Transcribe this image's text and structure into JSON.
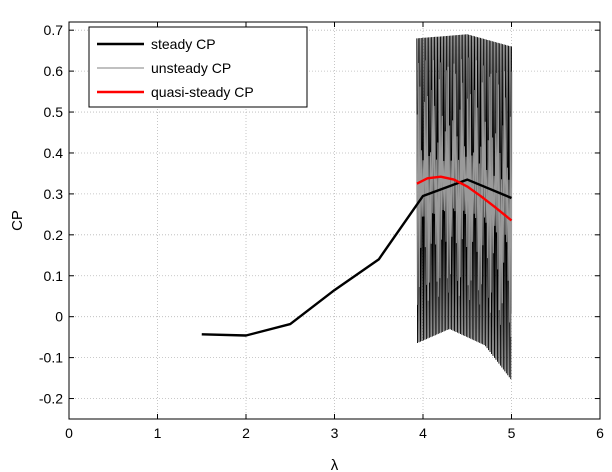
{
  "chart_data": {
    "type": "line",
    "xlabel": "λ",
    "ylabel": "CP",
    "xlim": [
      0,
      6
    ],
    "ylim": [
      -0.25,
      0.72
    ],
    "xticks": [
      0,
      1,
      2,
      3,
      4,
      5,
      6
    ],
    "xtick_labels": [
      "0",
      "1",
      "2",
      "3",
      "4",
      "5",
      "6"
    ],
    "yticks": [
      -0.2,
      -0.1,
      0,
      0.1,
      0.2,
      0.3,
      0.4,
      0.5,
      0.6,
      0.7
    ],
    "ytick_labels": [
      "-0.2",
      "-0.1",
      "0",
      "0.1",
      "0.2",
      "0.3",
      "0.4",
      "0.5",
      "0.6",
      "0.7"
    ],
    "grid": true,
    "legend_position": "top-left",
    "series": [
      {
        "name": "steady CP",
        "color": "#000000",
        "style": "solid",
        "x": [
          1.5,
          2.0,
          2.5,
          3.0,
          3.5,
          4.0,
          4.5,
          5.0
        ],
        "y": [
          -0.043,
          -0.046,
          -0.018,
          0.065,
          0.14,
          0.295,
          0.335,
          0.29
        ]
      },
      {
        "name": "unsteady CP",
        "color": "#9a9a9a",
        "style": "oscillating",
        "x_range": [
          3.93,
          5.0
        ],
        "upper_envelope": {
          "x": [
            3.93,
            4.5,
            5.0
          ],
          "y": [
            0.68,
            0.69,
            0.66
          ]
        },
        "lower_envelope": {
          "x": [
            3.93,
            4.3,
            4.7,
            5.0
          ],
          "y": [
            -0.065,
            -0.03,
            -0.07,
            -0.155
          ]
        }
      },
      {
        "name": "quasi-steady CP",
        "color": "#ff0000",
        "style": "solid",
        "x": [
          3.93,
          4.05,
          4.2,
          4.35,
          4.5,
          4.65,
          4.8,
          5.0
        ],
        "y": [
          0.325,
          0.338,
          0.342,
          0.335,
          0.318,
          0.295,
          0.27,
          0.235
        ]
      }
    ]
  }
}
